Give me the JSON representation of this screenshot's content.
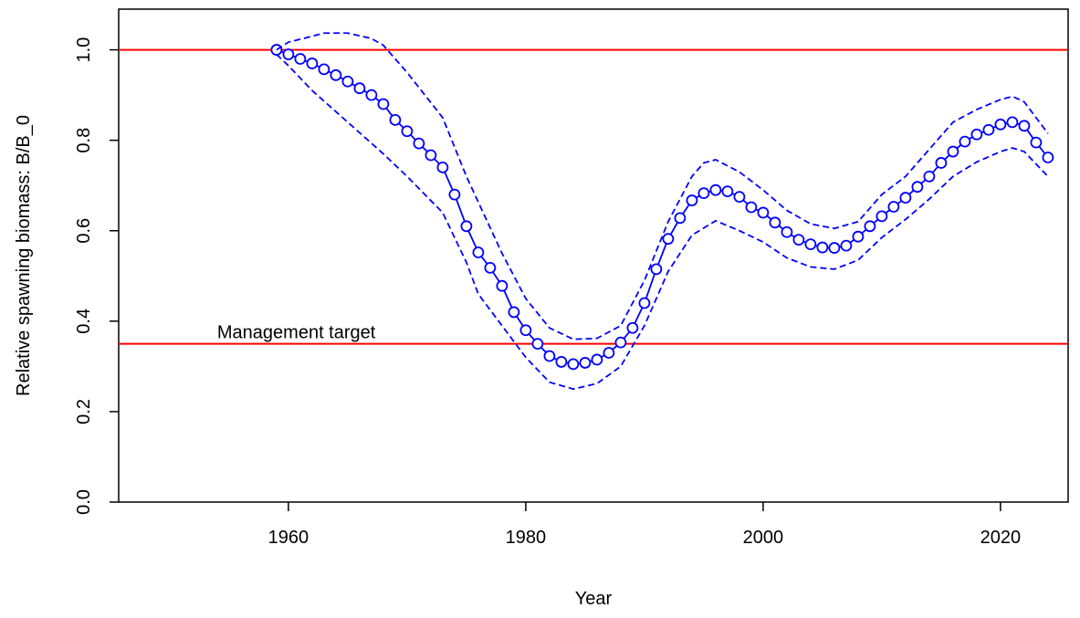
{
  "chart_data": {
    "type": "line",
    "xlabel": "Year",
    "ylabel": "Relative spawning biomass: B/B_0",
    "xlim": [
      1945.7,
      2025.7
    ],
    "ylim": [
      0,
      1.09
    ],
    "xticks": [
      1960,
      1980,
      2000,
      2020
    ],
    "yticks": [
      {
        "value": 0,
        "label": "0.0"
      },
      0.2,
      0.4,
      0.6,
      0.8,
      {
        "value": 1,
        "label": "1.0"
      }
    ],
    "grid": false,
    "series": [
      {
        "color": "#0000ff",
        "style": "solid",
        "markers": true,
        "x": [
          1959,
          1960,
          1961,
          1962,
          1963,
          1964,
          1965,
          1966,
          1967,
          1968,
          1969,
          1970,
          1971,
          1972,
          1973,
          1974,
          1975,
          1976,
          1977,
          1978,
          1979,
          1980,
          1981,
          1982,
          1983,
          1984,
          1985,
          1986,
          1987,
          1988,
          1989,
          1990,
          1991,
          1992,
          1993,
          1994,
          1995,
          1996,
          1997,
          1998,
          1999,
          2000,
          2001,
          2002,
          2003,
          2004,
          2005,
          2006,
          2007,
          2008,
          2009,
          2010,
          2011,
          2012,
          2013,
          2014,
          2015,
          2016,
          2017,
          2018,
          2019,
          2020,
          2021,
          2022,
          2023,
          2024
        ],
        "values": [
          1.0,
          0.99,
          0.98,
          0.97,
          0.957,
          0.944,
          0.93,
          0.915,
          0.9,
          0.88,
          0.845,
          0.82,
          0.793,
          0.767,
          0.74,
          0.68,
          0.61,
          0.552,
          0.518,
          0.478,
          0.42,
          0.38,
          0.35,
          0.323,
          0.31,
          0.305,
          0.308,
          0.315,
          0.33,
          0.353,
          0.385,
          0.44,
          0.515,
          0.582,
          0.628,
          0.667,
          0.683,
          0.69,
          0.687,
          0.675,
          0.652,
          0.64,
          0.618,
          0.597,
          0.58,
          0.57,
          0.563,
          0.562,
          0.567,
          0.587,
          0.61,
          0.632,
          0.653,
          0.673,
          0.697,
          0.72,
          0.75,
          0.775,
          0.797,
          0.813,
          0.823,
          0.835,
          0.84,
          0.832,
          0.795,
          0.762
        ]
      },
      {
        "color": "#0000ff",
        "style": "dashed",
        "markers": false,
        "x": [
          1959,
          1960,
          1962,
          1963,
          1965,
          1967,
          1968,
          1970,
          1973,
          1975,
          1978,
          1980,
          1982,
          1984,
          1986,
          1988,
          1990,
          1992,
          1994,
          1995,
          1996,
          1998,
          2000,
          2002,
          2004,
          2006,
          2008,
          2010,
          2012,
          2014,
          2016,
          2018,
          2020,
          2021,
          2022,
          2024
        ],
        "values": [
          1.0,
          1.017,
          1.03,
          1.037,
          1.037,
          1.025,
          1.01,
          0.95,
          0.85,
          0.72,
          0.55,
          0.45,
          0.385,
          0.36,
          0.362,
          0.39,
          0.49,
          0.62,
          0.72,
          0.75,
          0.757,
          0.73,
          0.69,
          0.645,
          0.615,
          0.605,
          0.62,
          0.68,
          0.72,
          0.78,
          0.84,
          0.868,
          0.89,
          0.897,
          0.885,
          0.815
        ]
      },
      {
        "color": "#0000ff",
        "style": "dashed",
        "markers": false,
        "x": [
          1959,
          1960,
          1962,
          1965,
          1968,
          1970,
          1973,
          1975,
          1976,
          1978,
          1980,
          1982,
          1984,
          1986,
          1988,
          1990,
          1992,
          1994,
          1996,
          1998,
          2000,
          2002,
          2004,
          2006,
          2008,
          2010,
          2012,
          2014,
          2016,
          2018,
          2020,
          2021,
          2022,
          2024
        ],
        "values": [
          0.99,
          0.965,
          0.91,
          0.84,
          0.77,
          0.72,
          0.64,
          0.53,
          0.46,
          0.39,
          0.32,
          0.265,
          0.25,
          0.262,
          0.3,
          0.39,
          0.51,
          0.59,
          0.622,
          0.6,
          0.575,
          0.54,
          0.52,
          0.515,
          0.535,
          0.585,
          0.625,
          0.67,
          0.72,
          0.752,
          0.775,
          0.783,
          0.775,
          0.72
        ]
      }
    ],
    "reference_lines": [
      {
        "value": 1.0,
        "color": "#ff0000"
      },
      {
        "value": 0.35,
        "color": "#ff0000",
        "label": "Management target"
      }
    ]
  }
}
